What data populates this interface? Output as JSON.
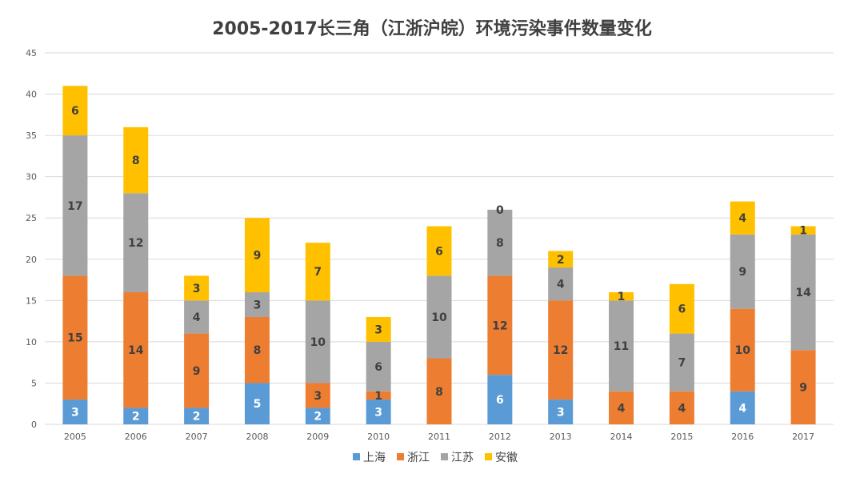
{
  "chart_data": {
    "type": "bar",
    "stacked": true,
    "title": "2005-2017长三角（江浙沪皖）环境污染事件数量变化",
    "categories": [
      "2005",
      "2006",
      "2007",
      "2008",
      "2009",
      "2010",
      "2011",
      "2012",
      "2013",
      "2014",
      "2015",
      "2016",
      "2017"
    ],
    "ylim": [
      0,
      45
    ],
    "yticks": [
      0,
      5,
      10,
      15,
      20,
      25,
      30,
      35,
      40,
      45
    ],
    "grid": true,
    "legend": "bottom",
    "series": [
      {
        "name": "上海",
        "color": "#5B9BD5",
        "values": [
          3,
          2,
          2,
          5,
          2,
          3,
          0,
          6,
          3,
          0,
          0,
          4,
          0
        ]
      },
      {
        "name": "浙江",
        "color": "#ED7D31",
        "values": [
          15,
          14,
          9,
          8,
          3,
          1,
          8,
          12,
          12,
          4,
          4,
          10,
          9
        ]
      },
      {
        "name": "江苏",
        "color": "#A5A5A5",
        "values": [
          17,
          12,
          4,
          3,
          10,
          6,
          10,
          8,
          4,
          11,
          7,
          9,
          14
        ]
      },
      {
        "name": "安徽",
        "color": "#FFC000",
        "values": [
          6,
          8,
          3,
          9,
          7,
          3,
          6,
          0,
          2,
          1,
          6,
          4,
          1
        ]
      }
    ]
  }
}
